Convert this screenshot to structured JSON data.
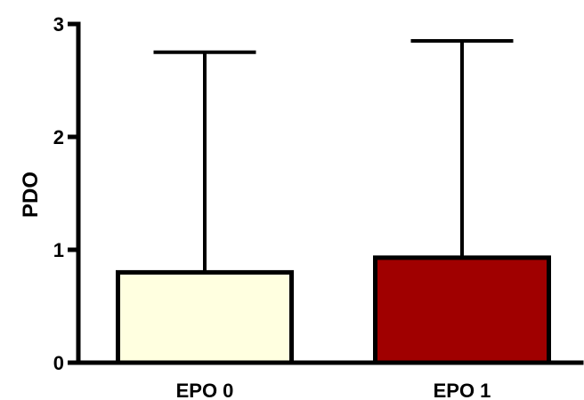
{
  "chart_data": {
    "type": "bar",
    "title": "",
    "xlabel": "",
    "ylabel": "PDO",
    "ylim": [
      0,
      3
    ],
    "yticks": [
      0,
      1,
      2,
      3
    ],
    "categories": [
      "EPO 0",
      "EPO 1"
    ],
    "values": [
      0.8,
      0.93
    ],
    "error_upper": [
      2.75,
      2.85
    ],
    "colors": [
      "#FFFFE0",
      "#A00000"
    ],
    "edge_color": "#000000",
    "grid": false
  }
}
